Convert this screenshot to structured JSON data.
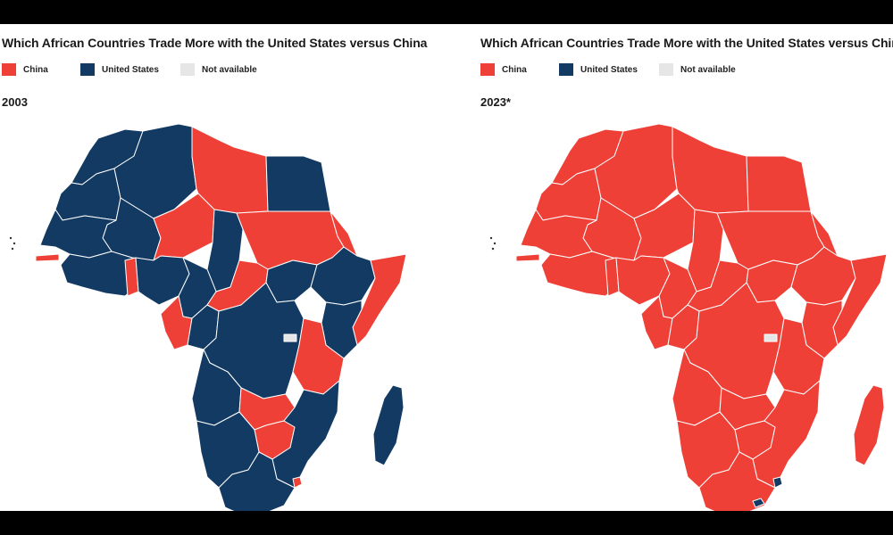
{
  "colors": {
    "china": "#ee4037",
    "united_states": "#123a63",
    "not_available": "#e6e6e6",
    "border": "#ffffff"
  },
  "legend": {
    "china": "China",
    "united_states": "United States",
    "not_available": "Not available"
  },
  "panels": [
    {
      "title": "Which African Countries Trade More with the United States versus China",
      "year": "2003",
      "regions": {
        "morocco": "united_states",
        "west_sahara_mauritania": "united_states",
        "algeria": "united_states",
        "libya": "china",
        "egypt": "united_states",
        "mali": "united_states",
        "niger": "china",
        "chad": "united_states",
        "sudan": "china",
        "gambia": "china",
        "senegal_guinea": "united_states",
        "coast_west": "united_states",
        "ghana": "china",
        "nigeria": "united_states",
        "cameroon": "united_states",
        "car": "china",
        "south_sudan": "united_states",
        "ethiopia": "united_states",
        "eritrea": "china",
        "somalia": "china",
        "kenya": "united_states",
        "gabon": "china",
        "congo": "united_states",
        "drc": "united_states",
        "tanzania": "china",
        "angola": "united_states",
        "zambia": "china",
        "zimbabwe": "china",
        "mozambique": "united_states",
        "namibia_botswana": "united_states",
        "south_africa": "united_states",
        "madagascar": "united_states",
        "eswatini": "china",
        "na_spot": "not_available"
      }
    },
    {
      "title": "Which African Countries Trade More with the United States versus China",
      "year": "2023*",
      "regions": {
        "morocco": "china",
        "west_sahara_mauritania": "china",
        "algeria": "china",
        "libya": "china",
        "egypt": "china",
        "mali": "china",
        "niger": "china",
        "chad": "china",
        "sudan": "china",
        "gambia": "china",
        "senegal_guinea": "china",
        "coast_west": "china",
        "ghana": "china",
        "nigeria": "china",
        "cameroon": "china",
        "car": "china",
        "south_sudan": "china",
        "ethiopia": "china",
        "eritrea": "china",
        "somalia": "china",
        "kenya": "china",
        "gabon": "china",
        "congo": "china",
        "drc": "china",
        "tanzania": "china",
        "angola": "china",
        "zambia": "china",
        "zimbabwe": "china",
        "mozambique": "china",
        "namibia_botswana": "china",
        "south_africa": "china",
        "madagascar": "china",
        "eswatini": "united_states",
        "lesotho_us": "united_states",
        "na_spot": "not_available"
      }
    }
  ]
}
